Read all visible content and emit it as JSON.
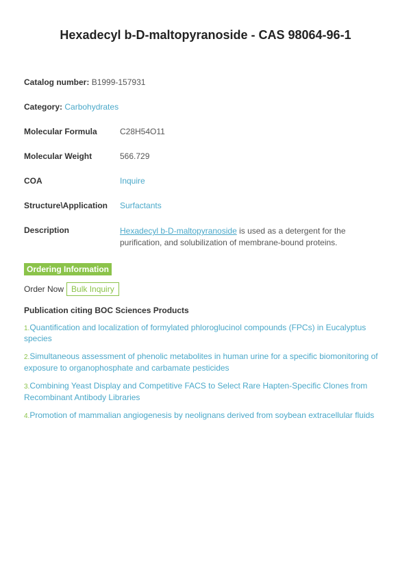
{
  "title": "Hexadecyl b-D-maltopyranoside - CAS 98064-96-1",
  "catalog": {
    "label": "Catalog number:",
    "value": "B1999-157931"
  },
  "category": {
    "label": "Category:",
    "value": "Carbohydrates"
  },
  "formula": {
    "label": "Molecular Formula",
    "value": "C28H54O11"
  },
  "weight": {
    "label": "Molecular Weight",
    "value": "566.729"
  },
  "coa": {
    "label": "COA",
    "value": "Inquire"
  },
  "application": {
    "label": "Structure\\Application",
    "value": "Surfactants"
  },
  "description": {
    "label": "Description",
    "link_text": "Hexadecyl b-D-maltopyranoside",
    "rest": " is used as a detergent for the purification, and solubilization of membrane-bound proteins."
  },
  "ordering": {
    "header": "Ordering Information",
    "order_now": "Order Now",
    "bulk_inquiry": "Bulk Inquiry"
  },
  "publications": {
    "heading": "Publication citing BOC Sciences Products",
    "items": [
      {
        "num": "1.",
        "text": "Quantification and localization of formylated phloroglucinol compounds (FPCs) in Eucalyptus species"
      },
      {
        "num": "2.",
        "text": "Simultaneous assessment of phenolic metabolites in human urine for a specific biomonitoring of exposure to organophosphate and carbamate pesticides"
      },
      {
        "num": "3.",
        "text": "Combining Yeast Display and Competitive FACS to Select Rare Hapten-Specific Clones from Recombinant Antibody Libraries"
      },
      {
        "num": "4.",
        "text": "Promotion of mammalian angiogenesis by neolignans derived from soybean extracellular fluids"
      }
    ]
  }
}
